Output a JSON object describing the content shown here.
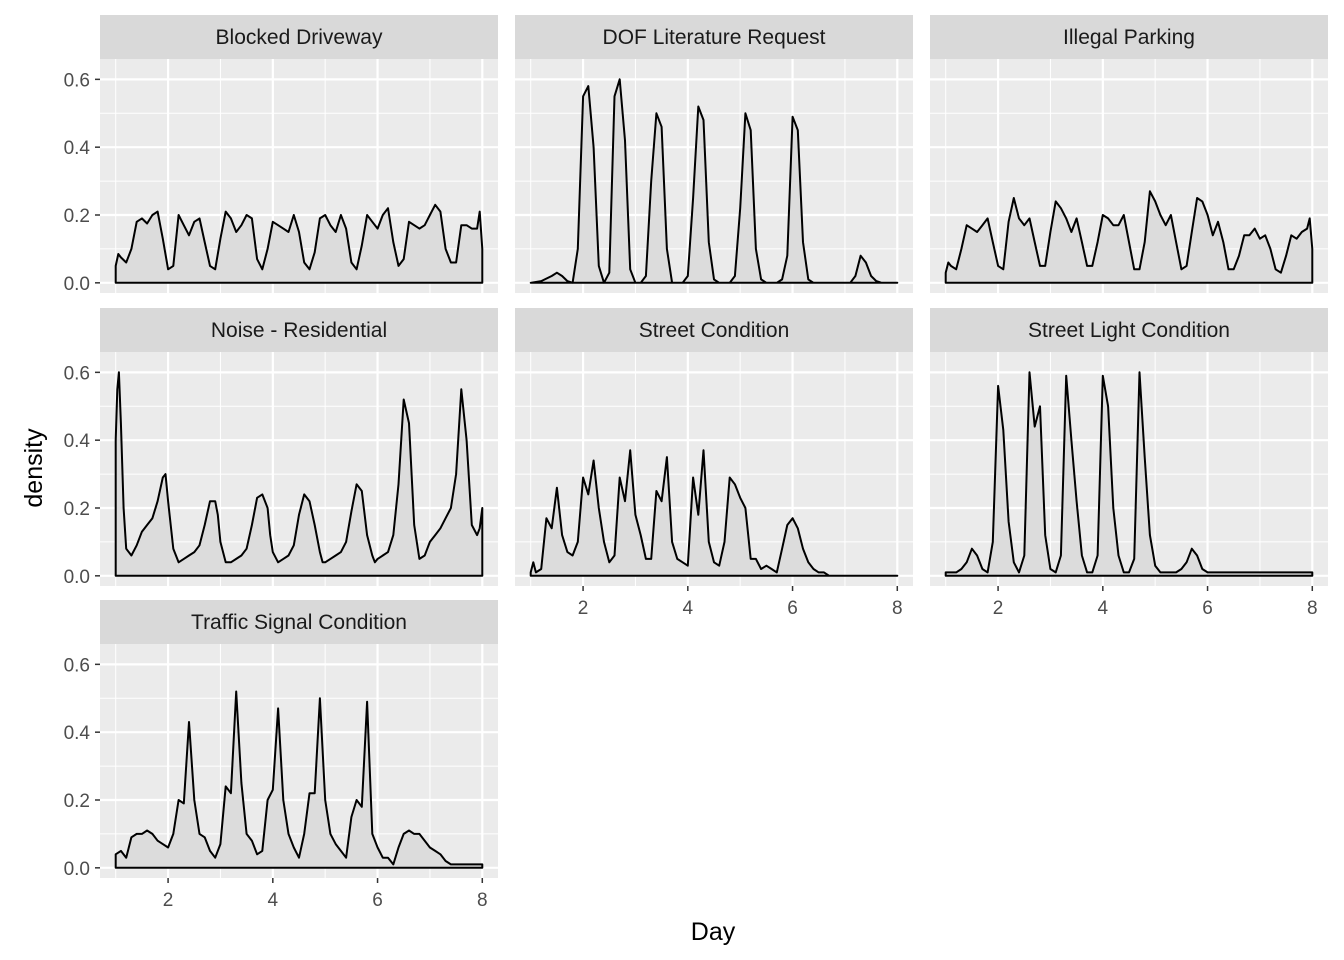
{
  "chart_data": {
    "type": "area",
    "xlabel": "Day",
    "ylabel": "density",
    "xlim": [
      0.7,
      8.3
    ],
    "ylim": [
      -0.03,
      0.66
    ],
    "xticks": [
      2,
      4,
      6,
      8
    ],
    "yticks": [
      0.0,
      0.2,
      0.4,
      0.6
    ],
    "ytick_labels": [
      "0.0",
      "0.2",
      "0.4",
      "0.6"
    ],
    "grid": true,
    "layout": "facet_wrap 3 columns",
    "colors": {
      "panel_bg": "#EBEBEB",
      "strip_bg": "#D9D9D9",
      "fill": "#DCDCDC",
      "line": "#000000",
      "grid": "#FFFFFF"
    },
    "series": [
      {
        "name": "Blocked Driveway",
        "x": [
          1.0,
          1.05,
          1.1,
          1.2,
          1.3,
          1.4,
          1.5,
          1.6,
          1.7,
          1.8,
          1.9,
          2.0,
          2.1,
          2.2,
          2.3,
          2.4,
          2.5,
          2.6,
          2.7,
          2.8,
          2.9,
          3.0,
          3.1,
          3.2,
          3.3,
          3.4,
          3.5,
          3.6,
          3.7,
          3.8,
          3.9,
          4.0,
          4.1,
          4.2,
          4.3,
          4.4,
          4.5,
          4.6,
          4.7,
          4.8,
          4.9,
          5.0,
          5.1,
          5.2,
          5.3,
          5.4,
          5.5,
          5.6,
          5.7,
          5.8,
          5.9,
          6.0,
          6.1,
          6.2,
          6.3,
          6.4,
          6.5,
          6.6,
          6.7,
          6.8,
          6.9,
          7.0,
          7.1,
          7.2,
          7.3,
          7.4,
          7.5,
          7.6,
          7.7,
          7.8,
          7.9,
          7.95,
          8.0
        ],
        "y": [
          0.05,
          0.085,
          0.075,
          0.06,
          0.1,
          0.18,
          0.19,
          0.175,
          0.2,
          0.21,
          0.13,
          0.04,
          0.05,
          0.2,
          0.17,
          0.14,
          0.18,
          0.19,
          0.12,
          0.05,
          0.04,
          0.13,
          0.21,
          0.19,
          0.15,
          0.17,
          0.2,
          0.19,
          0.07,
          0.04,
          0.1,
          0.18,
          0.17,
          0.16,
          0.15,
          0.2,
          0.15,
          0.06,
          0.04,
          0.09,
          0.19,
          0.2,
          0.17,
          0.15,
          0.2,
          0.16,
          0.06,
          0.04,
          0.11,
          0.2,
          0.18,
          0.16,
          0.2,
          0.22,
          0.12,
          0.05,
          0.07,
          0.18,
          0.17,
          0.16,
          0.17,
          0.2,
          0.23,
          0.21,
          0.1,
          0.06,
          0.06,
          0.17,
          0.17,
          0.16,
          0.16,
          0.21,
          0.1
        ]
      },
      {
        "name": "DOF Literature Request",
        "x": [
          1.0,
          1.2,
          1.4,
          1.5,
          1.6,
          1.7,
          1.8,
          1.9,
          2.0,
          2.1,
          2.2,
          2.3,
          2.4,
          2.5,
          2.6,
          2.7,
          2.8,
          2.9,
          3.0,
          3.1,
          3.2,
          3.3,
          3.4,
          3.5,
          3.6,
          3.7,
          3.8,
          3.9,
          4.0,
          4.1,
          4.2,
          4.3,
          4.4,
          4.5,
          4.6,
          4.7,
          4.8,
          4.9,
          5.0,
          5.1,
          5.2,
          5.3,
          5.4,
          5.5,
          5.6,
          5.7,
          5.8,
          5.9,
          6.0,
          6.1,
          6.2,
          6.3,
          6.4,
          6.5,
          6.6,
          6.7,
          6.8,
          6.9,
          7.0,
          7.1,
          7.2,
          7.3,
          7.4,
          7.5,
          7.6,
          7.7,
          7.8,
          7.9,
          8.0
        ],
        "y": [
          0.0,
          0.005,
          0.02,
          0.03,
          0.02,
          0.005,
          0.0,
          0.1,
          0.55,
          0.58,
          0.4,
          0.05,
          0.0,
          0.03,
          0.55,
          0.6,
          0.42,
          0.04,
          0.0,
          0.0,
          0.02,
          0.3,
          0.5,
          0.46,
          0.1,
          0.0,
          0.0,
          0.0,
          0.02,
          0.25,
          0.52,
          0.48,
          0.12,
          0.01,
          0.0,
          0.0,
          0.0,
          0.02,
          0.22,
          0.5,
          0.45,
          0.1,
          0.01,
          0.0,
          0.0,
          0.0,
          0.01,
          0.08,
          0.49,
          0.45,
          0.12,
          0.01,
          0.0,
          0.0,
          0.0,
          0.0,
          0.0,
          0.0,
          0.0,
          0.0,
          0.02,
          0.08,
          0.06,
          0.02,
          0.005,
          0.0,
          0.0,
          0.0,
          0.0
        ]
      },
      {
        "name": "Illegal Parking",
        "x": [
          1.0,
          1.05,
          1.1,
          1.2,
          1.3,
          1.4,
          1.5,
          1.6,
          1.7,
          1.8,
          1.9,
          2.0,
          2.1,
          2.2,
          2.3,
          2.4,
          2.5,
          2.6,
          2.7,
          2.8,
          2.9,
          3.0,
          3.1,
          3.2,
          3.3,
          3.4,
          3.5,
          3.6,
          3.7,
          3.8,
          3.9,
          4.0,
          4.1,
          4.2,
          4.3,
          4.4,
          4.5,
          4.6,
          4.7,
          4.8,
          4.9,
          5.0,
          5.1,
          5.2,
          5.3,
          5.4,
          5.5,
          5.6,
          5.7,
          5.8,
          5.9,
          6.0,
          6.1,
          6.2,
          6.3,
          6.4,
          6.5,
          6.6,
          6.7,
          6.8,
          6.9,
          7.0,
          7.1,
          7.2,
          7.3,
          7.4,
          7.5,
          7.6,
          7.7,
          7.8,
          7.9,
          7.95,
          8.0
        ],
        "y": [
          0.03,
          0.06,
          0.05,
          0.04,
          0.1,
          0.17,
          0.16,
          0.15,
          0.17,
          0.19,
          0.12,
          0.05,
          0.04,
          0.18,
          0.25,
          0.19,
          0.17,
          0.19,
          0.12,
          0.05,
          0.05,
          0.15,
          0.24,
          0.22,
          0.19,
          0.15,
          0.19,
          0.12,
          0.05,
          0.05,
          0.12,
          0.2,
          0.19,
          0.17,
          0.17,
          0.2,
          0.12,
          0.04,
          0.04,
          0.12,
          0.27,
          0.24,
          0.2,
          0.17,
          0.2,
          0.12,
          0.04,
          0.05,
          0.15,
          0.25,
          0.24,
          0.2,
          0.14,
          0.18,
          0.12,
          0.04,
          0.04,
          0.08,
          0.14,
          0.14,
          0.16,
          0.13,
          0.14,
          0.1,
          0.04,
          0.03,
          0.08,
          0.14,
          0.13,
          0.15,
          0.16,
          0.19,
          0.1
        ]
      },
      {
        "name": "Noise - Residential",
        "x": [
          1.0,
          1.03,
          1.06,
          1.1,
          1.15,
          1.2,
          1.3,
          1.4,
          1.5,
          1.6,
          1.7,
          1.8,
          1.9,
          1.95,
          2.0,
          2.1,
          2.2,
          2.3,
          2.4,
          2.5,
          2.6,
          2.7,
          2.8,
          2.9,
          2.95,
          3.0,
          3.1,
          3.2,
          3.3,
          3.4,
          3.5,
          3.6,
          3.7,
          3.8,
          3.9,
          3.95,
          4.0,
          4.1,
          4.2,
          4.3,
          4.4,
          4.5,
          4.6,
          4.7,
          4.8,
          4.9,
          4.95,
          5.0,
          5.1,
          5.2,
          5.3,
          5.4,
          5.5,
          5.6,
          5.7,
          5.8,
          5.9,
          5.95,
          6.0,
          6.1,
          6.2,
          6.3,
          6.4,
          6.5,
          6.6,
          6.7,
          6.8,
          6.9,
          6.95,
          7.0,
          7.1,
          7.2,
          7.3,
          7.4,
          7.5,
          7.6,
          7.7,
          7.8,
          7.9,
          7.95,
          8.0
        ],
        "y": [
          0.4,
          0.55,
          0.6,
          0.45,
          0.2,
          0.08,
          0.06,
          0.09,
          0.13,
          0.15,
          0.17,
          0.22,
          0.29,
          0.3,
          0.22,
          0.08,
          0.04,
          0.05,
          0.06,
          0.07,
          0.09,
          0.15,
          0.22,
          0.22,
          0.18,
          0.1,
          0.04,
          0.04,
          0.05,
          0.06,
          0.08,
          0.15,
          0.23,
          0.24,
          0.2,
          0.12,
          0.07,
          0.04,
          0.05,
          0.06,
          0.09,
          0.18,
          0.24,
          0.22,
          0.15,
          0.07,
          0.04,
          0.04,
          0.05,
          0.06,
          0.07,
          0.1,
          0.19,
          0.27,
          0.25,
          0.12,
          0.06,
          0.04,
          0.05,
          0.06,
          0.07,
          0.12,
          0.27,
          0.52,
          0.45,
          0.15,
          0.05,
          0.06,
          0.08,
          0.1,
          0.12,
          0.14,
          0.17,
          0.2,
          0.3,
          0.55,
          0.4,
          0.15,
          0.12,
          0.14,
          0.2
        ]
      },
      {
        "name": "Street Condition",
        "x": [
          1.0,
          1.05,
          1.1,
          1.2,
          1.3,
          1.4,
          1.5,
          1.6,
          1.7,
          1.8,
          1.9,
          2.0,
          2.1,
          2.2,
          2.3,
          2.4,
          2.5,
          2.6,
          2.7,
          2.8,
          2.9,
          3.0,
          3.1,
          3.2,
          3.3,
          3.4,
          3.5,
          3.6,
          3.7,
          3.8,
          3.9,
          4.0,
          4.1,
          4.2,
          4.3,
          4.4,
          4.5,
          4.6,
          4.7,
          4.8,
          4.9,
          5.0,
          5.1,
          5.2,
          5.3,
          5.4,
          5.5,
          5.6,
          5.7,
          5.8,
          5.9,
          6.0,
          6.1,
          6.2,
          6.3,
          6.4,
          6.5,
          6.6,
          6.7,
          6.8,
          6.9,
          7.0,
          7.1,
          7.2,
          7.3,
          7.4,
          7.5,
          7.6,
          7.7,
          7.8,
          7.9,
          7.95,
          8.0
        ],
        "y": [
          0.01,
          0.04,
          0.01,
          0.02,
          0.17,
          0.14,
          0.26,
          0.12,
          0.07,
          0.06,
          0.1,
          0.29,
          0.24,
          0.34,
          0.2,
          0.1,
          0.04,
          0.06,
          0.29,
          0.22,
          0.37,
          0.18,
          0.12,
          0.05,
          0.05,
          0.25,
          0.22,
          0.35,
          0.1,
          0.05,
          0.04,
          0.03,
          0.29,
          0.18,
          0.37,
          0.1,
          0.04,
          0.03,
          0.1,
          0.29,
          0.27,
          0.23,
          0.2,
          0.05,
          0.05,
          0.02,
          0.03,
          0.02,
          0.01,
          0.08,
          0.15,
          0.17,
          0.14,
          0.08,
          0.04,
          0.02,
          0.01,
          0.01,
          0.0,
          0.0,
          0.0,
          0.0,
          0.0,
          0.0,
          0.0,
          0.0,
          0.0,
          0.0,
          0.0,
          0.0,
          0.0,
          0.0,
          0.0
        ]
      },
      {
        "name": "Street Light Condition",
        "x": [
          1.0,
          1.1,
          1.2,
          1.3,
          1.4,
          1.5,
          1.6,
          1.7,
          1.8,
          1.9,
          2.0,
          2.1,
          2.2,
          2.3,
          2.4,
          2.5,
          2.6,
          2.7,
          2.8,
          2.9,
          3.0,
          3.1,
          3.2,
          3.3,
          3.4,
          3.5,
          3.6,
          3.7,
          3.8,
          3.9,
          4.0,
          4.1,
          4.2,
          4.3,
          4.4,
          4.5,
          4.6,
          4.7,
          4.8,
          4.9,
          5.0,
          5.1,
          5.2,
          5.3,
          5.4,
          5.5,
          5.6,
          5.7,
          5.8,
          5.9,
          6.0,
          6.1,
          6.2,
          6.3,
          6.4,
          6.5,
          6.6,
          6.7,
          6.8,
          6.9,
          7.0,
          7.1,
          7.2,
          7.3,
          7.4,
          7.5,
          7.6,
          7.7,
          7.8,
          7.9,
          8.0
        ],
        "y": [
          0.01,
          0.01,
          0.01,
          0.02,
          0.04,
          0.08,
          0.06,
          0.02,
          0.01,
          0.1,
          0.56,
          0.43,
          0.16,
          0.04,
          0.01,
          0.06,
          0.6,
          0.44,
          0.5,
          0.12,
          0.02,
          0.01,
          0.06,
          0.59,
          0.4,
          0.22,
          0.06,
          0.01,
          0.01,
          0.06,
          0.59,
          0.5,
          0.2,
          0.06,
          0.01,
          0.01,
          0.05,
          0.6,
          0.35,
          0.12,
          0.03,
          0.01,
          0.01,
          0.01,
          0.01,
          0.02,
          0.04,
          0.08,
          0.06,
          0.02,
          0.01,
          0.01,
          0.01,
          0.01,
          0.01,
          0.01,
          0.01,
          0.01,
          0.01,
          0.01,
          0.01,
          0.01,
          0.01,
          0.01,
          0.01,
          0.01,
          0.01,
          0.01,
          0.01,
          0.01,
          0.01
        ]
      },
      {
        "name": "Traffic Signal Condition",
        "x": [
          1.0,
          1.1,
          1.2,
          1.3,
          1.4,
          1.5,
          1.6,
          1.7,
          1.8,
          1.9,
          2.0,
          2.1,
          2.2,
          2.3,
          2.4,
          2.5,
          2.6,
          2.7,
          2.8,
          2.9,
          3.0,
          3.1,
          3.2,
          3.3,
          3.4,
          3.5,
          3.6,
          3.7,
          3.8,
          3.9,
          4.0,
          4.1,
          4.2,
          4.3,
          4.4,
          4.5,
          4.6,
          4.7,
          4.8,
          4.9,
          5.0,
          5.1,
          5.2,
          5.3,
          5.4,
          5.5,
          5.6,
          5.7,
          5.8,
          5.9,
          6.0,
          6.1,
          6.2,
          6.3,
          6.4,
          6.5,
          6.6,
          6.7,
          6.8,
          6.9,
          7.0,
          7.1,
          7.2,
          7.3,
          7.4,
          7.5,
          7.6,
          7.7,
          7.8,
          7.9,
          8.0
        ],
        "y": [
          0.04,
          0.05,
          0.03,
          0.09,
          0.1,
          0.1,
          0.11,
          0.1,
          0.08,
          0.07,
          0.06,
          0.1,
          0.2,
          0.19,
          0.43,
          0.2,
          0.1,
          0.09,
          0.05,
          0.03,
          0.07,
          0.24,
          0.22,
          0.52,
          0.25,
          0.1,
          0.08,
          0.04,
          0.05,
          0.2,
          0.23,
          0.47,
          0.2,
          0.1,
          0.06,
          0.03,
          0.1,
          0.22,
          0.22,
          0.5,
          0.2,
          0.1,
          0.07,
          0.05,
          0.03,
          0.15,
          0.2,
          0.18,
          0.49,
          0.1,
          0.06,
          0.03,
          0.03,
          0.01,
          0.06,
          0.1,
          0.11,
          0.1,
          0.1,
          0.08,
          0.06,
          0.05,
          0.04,
          0.02,
          0.01,
          0.01,
          0.01,
          0.01,
          0.01,
          0.01,
          0.01
        ]
      }
    ]
  }
}
